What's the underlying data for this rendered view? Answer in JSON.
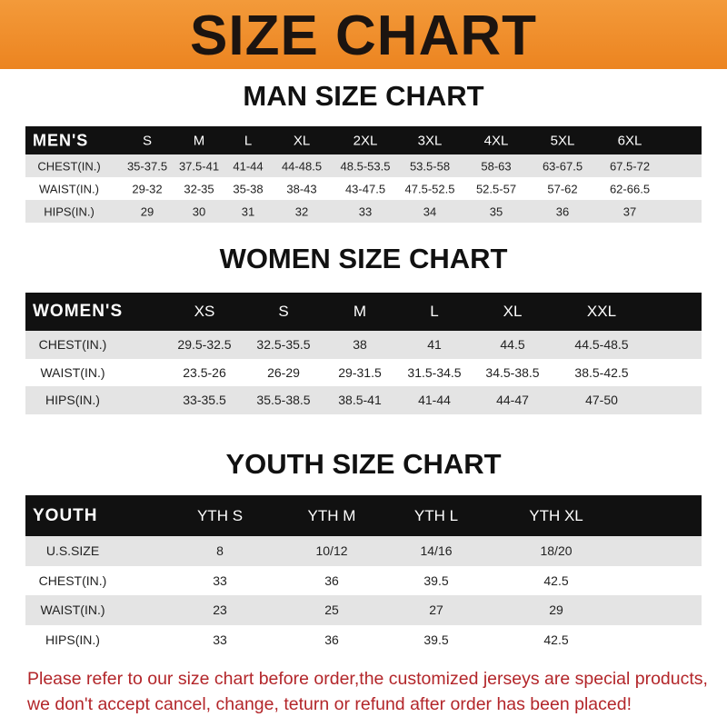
{
  "title": "SIZE CHART",
  "men": {
    "heading": "MAN SIZE CHART",
    "header": [
      "MEN'S",
      "S",
      "M",
      "L",
      "XL",
      "2XL",
      "3XL",
      "4XL",
      "5XL",
      "6XL"
    ],
    "rows": [
      [
        "CHEST(IN.)",
        "35-37.5",
        "37.5-41",
        "41-44",
        "44-48.5",
        "48.5-53.5",
        "53.5-58",
        "58-63",
        "63-67.5",
        "67.5-72"
      ],
      [
        "WAIST(IN.)",
        "29-32",
        "32-35",
        "35-38",
        "38-43",
        "43-47.5",
        "47.5-52.5",
        "52.5-57",
        "57-62",
        "62-66.5"
      ],
      [
        "HIPS(IN.)",
        "29",
        "30",
        "31",
        "32",
        "33",
        "34",
        "35",
        "36",
        "37"
      ]
    ]
  },
  "women": {
    "heading": "WOMEN SIZE CHART",
    "header": [
      "WOMEN'S",
      "XS",
      "S",
      "M",
      "L",
      "XL",
      "XXL"
    ],
    "rows": [
      [
        "CHEST(IN.)",
        "29.5-32.5",
        "32.5-35.5",
        "38",
        "41",
        "44.5",
        "44.5-48.5"
      ],
      [
        "WAIST(IN.)",
        "23.5-26",
        "26-29",
        "29-31.5",
        "31.5-34.5",
        "34.5-38.5",
        "38.5-42.5"
      ],
      [
        "HIPS(IN.)",
        "33-35.5",
        "35.5-38.5",
        "38.5-41",
        "41-44",
        "44-47",
        "47-50"
      ]
    ]
  },
  "youth": {
    "heading": "YOUTH SIZE CHART",
    "header": [
      "YOUTH",
      "YTH S",
      "YTH M",
      "YTH L",
      "YTH XL"
    ],
    "rows": [
      [
        "U.S.SIZE",
        "8",
        "10/12",
        "14/16",
        "18/20"
      ],
      [
        "CHEST(IN.)",
        "33",
        "36",
        "39.5",
        "42.5"
      ],
      [
        "WAIST(IN.)",
        "23",
        "25",
        "27",
        "29"
      ],
      [
        "HIPS(IN.)",
        "33",
        "36",
        "39.5",
        "42.5"
      ]
    ]
  },
  "notice": {
    "line1": "Please refer to our size chart before order,the customized jerseys are special products,",
    "line2": "we don't accept cancel, change, teturn or refund after order has been placed!"
  },
  "colors": {
    "banner": "#ec8420",
    "header_row": "#111111",
    "stripe": "#e4e4e4",
    "notice": "#b3262a"
  }
}
